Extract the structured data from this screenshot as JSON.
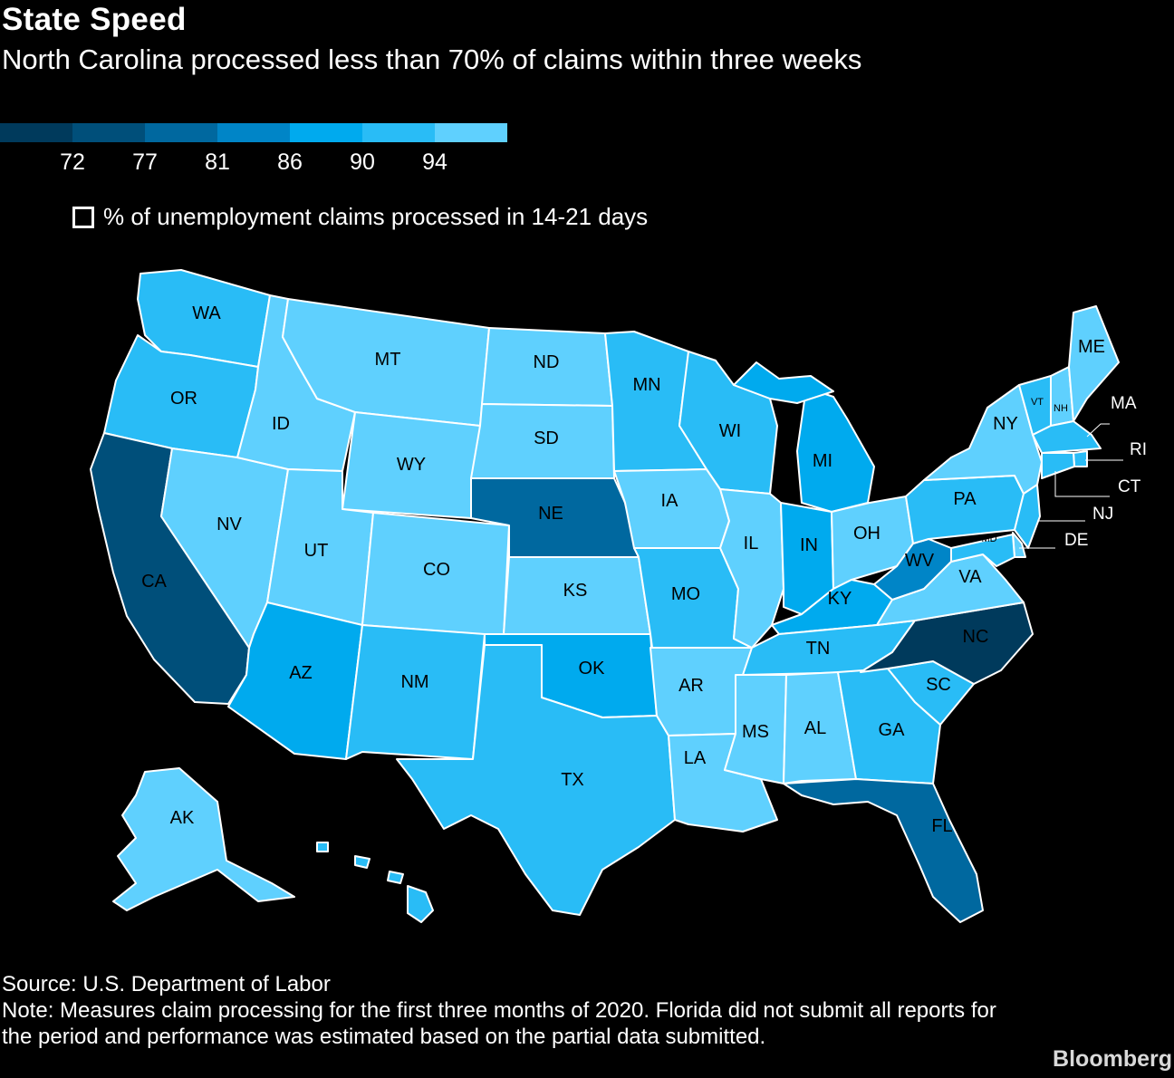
{
  "title": "State Speed",
  "subtitle": "North Carolina processed less than 70% of claims within three weeks",
  "legend": {
    "colors": [
      "#003a5c",
      "#004f7a",
      "#00689f",
      "#0085c7",
      "#00aaee",
      "#29bcf6",
      "#5fd0fe"
    ],
    "ticks": [
      "72",
      "77",
      "81",
      "86",
      "90",
      "94"
    ],
    "key_label": "% of unemployment claims processed in 14-21 days"
  },
  "states": {
    "WA": "#29bcf6",
    "OR": "#29bcf6",
    "CA": "#004f7a",
    "NV": "#5fd0fe",
    "ID": "#5fd0fe",
    "MT": "#5fd0fe",
    "WY": "#5fd0fe",
    "UT": "#5fd0fe",
    "AZ": "#00aaee",
    "CO": "#5fd0fe",
    "NM": "#29bcf6",
    "ND": "#5fd0fe",
    "SD": "#5fd0fe",
    "NE": "#00689f",
    "KS": "#5fd0fe",
    "OK": "#00aaee",
    "TX": "#29bcf6",
    "MN": "#29bcf6",
    "IA": "#5fd0fe",
    "MO": "#29bcf6",
    "AR": "#5fd0fe",
    "LA": "#5fd0fe",
    "WI": "#29bcf6",
    "IL": "#5fd0fe",
    "MI": "#00aaee",
    "IN": "#00aaee",
    "OH": "#5fd0fe",
    "KY": "#00aaee",
    "TN": "#29bcf6",
    "MS": "#5fd0fe",
    "AL": "#5fd0fe",
    "GA": "#29bcf6",
    "FL": "#00689f",
    "SC": "#29bcf6",
    "NC": "#003a5c",
    "VA": "#5fd0fe",
    "WV": "#0085c7",
    "PA": "#29bcf6",
    "NY": "#5fd0fe",
    "VT": "#29bcf6",
    "NH": "#5fd0fe",
    "ME": "#5fd0fe",
    "MA": "#29bcf6",
    "RI": "#29bcf6",
    "CT": "#29bcf6",
    "NJ": "#29bcf6",
    "DE": "#5fd0fe",
    "MD": "#29bcf6",
    "AK": "#5fd0fe",
    "HI": "#29bcf6"
  },
  "callouts": [
    "MA",
    "RI",
    "CT",
    "NJ",
    "DE"
  ],
  "footer": {
    "source": "Source: U.S. Department of Labor",
    "note": "Note: Measures claim processing for the first three months of 2020. Florida did not submit all reports for the period and performance was estimated based on the partial data submitted."
  },
  "brand": "Bloomberg"
}
